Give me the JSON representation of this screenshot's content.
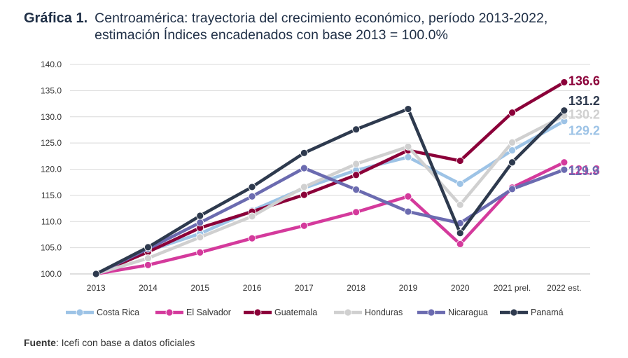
{
  "header": {
    "label": "Gráfica 1.",
    "title_line1": "Centroamérica: trayectoria del crecimiento económico, período 2013-2022,",
    "title_line2": "estimación Índices encadenados con base 2013 = 100.0%"
  },
  "source": {
    "label": "Fuente",
    "text": ": Icefi con base a datos oficiales"
  },
  "chart_data": {
    "type": "line",
    "categories": [
      "2013",
      "2014",
      "2015",
      "2016",
      "2017",
      "2018",
      "2019",
      "2020",
      "2021 prel.",
      "2022 est."
    ],
    "ylim": [
      100,
      140
    ],
    "yticks": [
      "100.0",
      "105.0",
      "110.0",
      "115.0",
      "120.0",
      "125.0",
      "130.0",
      "135.0",
      "140.0"
    ],
    "grid": true,
    "legend_position": "bottom",
    "series": [
      {
        "name": "Costa Rica",
        "color": "#9dc3e6",
        "values": [
          100,
          104.4,
          107.7,
          112.1,
          116.4,
          119.8,
          122.3,
          117.2,
          123.6,
          129.2
        ],
        "end_label": "129.2"
      },
      {
        "name": "El Salvador",
        "color": "#d43a9c",
        "values": [
          100,
          101.7,
          104.1,
          106.8,
          109.2,
          111.8,
          114.8,
          105.7,
          116.5,
          121.3
        ],
        "end_label": "121.3"
      },
      {
        "name": "Guatemala",
        "color": "#8b0039",
        "values": [
          100,
          104.2,
          108.8,
          111.9,
          115.1,
          118.9,
          123.6,
          121.6,
          130.8,
          136.6
        ],
        "end_label": "136.6"
      },
      {
        "name": "Honduras",
        "color": "#d0d0d0",
        "values": [
          100,
          103.0,
          107.0,
          111.0,
          116.6,
          121.0,
          124.3,
          113.2,
          125.1,
          130.2
        ],
        "end_label": "130.2"
      },
      {
        "name": "Nicaragua",
        "color": "#6b6bb0",
        "values": [
          100,
          104.8,
          109.8,
          114.8,
          120.2,
          116.1,
          111.9,
          109.7,
          116.2,
          119.9
        ],
        "end_label": "119.9"
      },
      {
        "name": "Panamá",
        "color": "#2e3a4e",
        "values": [
          100,
          105.1,
          111.1,
          116.6,
          123.1,
          127.6,
          131.5,
          107.8,
          121.3,
          131.2
        ],
        "end_label": "131.2"
      }
    ]
  }
}
